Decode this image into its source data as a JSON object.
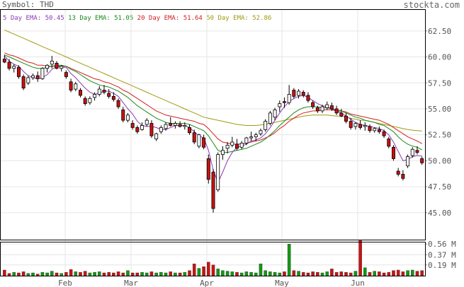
{
  "header": {
    "symbol_label": "Symbol:",
    "symbol": "THD",
    "site": "stockta.com"
  },
  "ema_legend": [
    {
      "label": "5 Day EMA:",
      "value": "50.45",
      "color": "#8b3ab5"
    },
    {
      "label": "13 Day EMA:",
      "value": "51.05",
      "color": "#1a8a1a"
    },
    {
      "label": "20 Day EMA:",
      "value": "51.64",
      "color": "#d42020"
    },
    {
      "label": "50 Day EMA:",
      "value": "52.86",
      "color": "#a09a10"
    }
  ],
  "chart_data": {
    "type": "candlestick",
    "price_axis": {
      "ticks": [
        "62.50",
        "60.00",
        "57.50",
        "55.00",
        "52.50",
        "50.00",
        "47.50",
        "45.00"
      ],
      "ylim": [
        42.4,
        64.6
      ]
    },
    "volume_axis": {
      "ticks": [
        "0.56 M",
        "0.37 M",
        "0.19 M"
      ],
      "ylim": [
        0,
        0.6
      ]
    },
    "month_labels": [
      "Feb",
      "Mar",
      "Apr",
      "May",
      "Jun"
    ],
    "colors": {
      "up": "#ffffff",
      "down": "#cc1111",
      "vol_up": "#119911",
      "vol_down": "#cc1111",
      "grid": "#e6e6e6"
    },
    "candles": [
      [
        59.8,
        60.2,
        59.4,
        59.5
      ],
      [
        59.5,
        59.8,
        58.7,
        58.9
      ],
      [
        58.9,
        59.3,
        58.5,
        59.1
      ],
      [
        59.0,
        59.2,
        57.9,
        58.1
      ],
      [
        58.1,
        58.3,
        56.8,
        57.0
      ],
      [
        57.5,
        58.2,
        57.3,
        58.0
      ],
      [
        58.0,
        58.4,
        57.8,
        58.2
      ],
      [
        58.2,
        58.6,
        57.6,
        57.9
      ],
      [
        57.9,
        59.0,
        57.8,
        58.9
      ],
      [
        58.9,
        59.3,
        58.5,
        59.2
      ],
      [
        59.3,
        60.1,
        58.9,
        59.6
      ],
      [
        59.4,
        59.6,
        58.8,
        58.9
      ],
      [
        58.9,
        59.2,
        58.6,
        59.1
      ],
      [
        58.5,
        58.7,
        57.9,
        58.1
      ],
      [
        57.6,
        57.9,
        56.6,
        56.8
      ],
      [
        56.9,
        57.6,
        56.7,
        57.4
      ],
      [
        56.8,
        57.0,
        56.1,
        56.3
      ],
      [
        56.0,
        56.2,
        55.3,
        55.5
      ],
      [
        55.6,
        56.2,
        55.4,
        56.0
      ],
      [
        56.1,
        56.6,
        55.8,
        56.4
      ],
      [
        56.4,
        57.2,
        56.2,
        56.9
      ],
      [
        56.8,
        57.3,
        56.4,
        56.6
      ],
      [
        56.5,
        56.9,
        56.0,
        56.2
      ],
      [
        56.2,
        56.6,
        55.7,
        55.9
      ],
      [
        55.8,
        56.0,
        55.0,
        55.2
      ],
      [
        54.9,
        55.2,
        53.7,
        53.9
      ],
      [
        53.9,
        54.6,
        53.7,
        54.4
      ],
      [
        53.6,
        53.9,
        53.0,
        53.2
      ],
      [
        53.2,
        53.4,
        52.6,
        52.8
      ],
      [
        53.0,
        53.7,
        52.9,
        53.4
      ],
      [
        53.5,
        54.1,
        53.3,
        53.9
      ],
      [
        53.6,
        53.9,
        52.2,
        52.4
      ],
      [
        52.1,
        52.7,
        51.9,
        52.6
      ],
      [
        52.8,
        53.4,
        52.6,
        53.2
      ],
      [
        53.1,
        53.7,
        52.9,
        53.5
      ],
      [
        53.6,
        54.2,
        53.3,
        53.4
      ],
      [
        53.4,
        53.8,
        53.1,
        53.6
      ],
      [
        53.5,
        53.8,
        53.2,
        53.3
      ],
      [
        53.3,
        53.7,
        53.0,
        53.4
      ],
      [
        53.2,
        53.5,
        52.5,
        52.7
      ],
      [
        52.7,
        53.0,
        51.6,
        51.8
      ],
      [
        51.4,
        52.6,
        51.2,
        52.5
      ],
      [
        52.2,
        52.5,
        51.1,
        51.3
      ],
      [
        50.2,
        50.6,
        47.8,
        48.2
      ],
      [
        48.9,
        49.2,
        45.0,
        45.4
      ],
      [
        47.2,
        50.8,
        47.0,
        50.6
      ],
      [
        50.6,
        51.4,
        50.1,
        51.0
      ],
      [
        51.2,
        51.8,
        50.7,
        51.5
      ],
      [
        51.5,
        52.3,
        51.3,
        51.8
      ],
      [
        51.6,
        52.1,
        51.0,
        51.2
      ],
      [
        51.3,
        51.9,
        51.1,
        51.7
      ],
      [
        51.7,
        52.3,
        51.5,
        52.2
      ],
      [
        52.2,
        52.8,
        51.9,
        52.3
      ],
      [
        52.3,
        52.7,
        51.9,
        52.5
      ],
      [
        52.6,
        53.1,
        52.4,
        52.9
      ],
      [
        53.0,
        54.0,
        52.8,
        53.8
      ],
      [
        53.6,
        54.8,
        53.4,
        54.6
      ],
      [
        54.2,
        55.1,
        53.9,
        54.9
      ],
      [
        55.2,
        55.8,
        54.7,
        55.5
      ],
      [
        55.7,
        56.1,
        55.1,
        55.6
      ],
      [
        55.6,
        57.3,
        55.4,
        56.4
      ],
      [
        56.8,
        57.0,
        56.0,
        56.2
      ],
      [
        56.3,
        56.9,
        56.0,
        56.7
      ],
      [
        56.6,
        56.8,
        56.1,
        56.3
      ],
      [
        56.3,
        56.6,
        55.6,
        55.8
      ],
      [
        55.6,
        55.8,
        55.0,
        55.2
      ],
      [
        55.1,
        55.3,
        54.6,
        54.8
      ],
      [
        54.8,
        55.4,
        54.6,
        55.2
      ],
      [
        55.1,
        55.7,
        54.9,
        55.4
      ],
      [
        55.3,
        55.6,
        54.8,
        55.0
      ],
      [
        55.0,
        55.3,
        54.4,
        54.6
      ],
      [
        54.6,
        55.0,
        54.2,
        54.3
      ],
      [
        54.3,
        54.6,
        53.6,
        53.8
      ],
      [
        53.8,
        54.1,
        53.0,
        53.2
      ],
      [
        53.3,
        53.7,
        53.0,
        53.6
      ],
      [
        53.5,
        53.9,
        53.0,
        53.2
      ],
      [
        53.3,
        53.7,
        52.9,
        53.4
      ],
      [
        53.3,
        53.5,
        52.7,
        52.9
      ],
      [
        52.9,
        53.2,
        52.7,
        53.1
      ],
      [
        53.0,
        53.3,
        52.6,
        52.8
      ],
      [
        52.8,
        53.0,
        52.2,
        52.4
      ],
      [
        52.1,
        52.3,
        51.2,
        51.4
      ],
      [
        51.3,
        51.5,
        50.0,
        50.2
      ],
      [
        49.0,
        49.3,
        48.5,
        48.7
      ],
      [
        48.7,
        49.1,
        48.1,
        48.3
      ],
      [
        49.5,
        50.6,
        49.3,
        50.4
      ],
      [
        50.5,
        51.3,
        50.3,
        51.1
      ],
      [
        51.0,
        51.4,
        50.6,
        50.8
      ],
      [
        50.2,
        50.4,
        49.6,
        49.8
      ]
    ],
    "volume": [
      0.1,
      0.04,
      0.06,
      0.05,
      0.07,
      0.04,
      0.05,
      0.03,
      0.06,
      0.05,
      0.08,
      0.05,
      0.04,
      0.06,
      0.11,
      0.07,
      0.06,
      0.08,
      0.05,
      0.06,
      0.07,
      0.05,
      0.06,
      0.05,
      0.07,
      0.05,
      0.09,
      0.05,
      0.05,
      0.06,
      0.05,
      0.07,
      0.05,
      0.06,
      0.05,
      0.07,
      0.05,
      0.05,
      0.06,
      0.09,
      0.21,
      0.13,
      0.16,
      0.24,
      0.19,
      0.12,
      0.09,
      0.08,
      0.07,
      0.06,
      0.05,
      0.07,
      0.06,
      0.05,
      0.21,
      0.09,
      0.07,
      0.06,
      0.05,
      0.07,
      0.56,
      0.09,
      0.08,
      0.06,
      0.05,
      0.07,
      0.06,
      0.05,
      0.07,
      0.12,
      0.06,
      0.07,
      0.06,
      0.05,
      0.08,
      0.62,
      0.14,
      0.06,
      0.08,
      0.07,
      0.05,
      0.06,
      0.09,
      0.1,
      0.07,
      0.09,
      0.1,
      0.08,
      0.09
    ],
    "ema": {
      "ema5": [
        60.1,
        59.6,
        59.3,
        59.1,
        58.6,
        58.2,
        58.0,
        57.9,
        58.0,
        58.3,
        58.8,
        59.1,
        59.0,
        59.0,
        58.4,
        58.0,
        57.5,
        57.0,
        56.6,
        56.4,
        56.5,
        56.7,
        56.7,
        56.5,
        56.2,
        55.6,
        55.0,
        54.5,
        53.8,
        53.4,
        53.3,
        53.3,
        53.2,
        53.0,
        53.0,
        53.2,
        53.4,
        53.4,
        53.4,
        53.2,
        52.8,
        52.4,
        52.2,
        51.0,
        49.1,
        47.9,
        48.9,
        50.0,
        50.8,
        51.3,
        51.4,
        51.6,
        51.9,
        52.0,
        52.2,
        52.6,
        53.2,
        53.9,
        54.6,
        55.2,
        55.7,
        56.0,
        56.2,
        56.3,
        56.1,
        55.8,
        55.5,
        55.3,
        55.2,
        55.0,
        54.8,
        54.6,
        54.3,
        54.0,
        53.7,
        53.5,
        53.4,
        53.3,
        53.2,
        53.1,
        52.9,
        52.5,
        51.8,
        50.9,
        50.0,
        50.1,
        50.4,
        50.5,
        50.45
      ],
      "ema13": [
        60.2,
        60.0,
        59.8,
        59.6,
        59.4,
        59.2,
        59.0,
        58.9,
        58.9,
        59.0,
        59.1,
        59.2,
        59.2,
        59.1,
        58.8,
        58.6,
        58.3,
        58.0,
        57.7,
        57.5,
        57.3,
        57.2,
        57.1,
        56.9,
        56.7,
        56.4,
        56.1,
        55.7,
        55.3,
        55.0,
        54.7,
        54.4,
        54.1,
        53.9,
        53.7,
        53.6,
        53.6,
        53.6,
        53.6,
        53.5,
        53.3,
        53.1,
        52.9,
        52.4,
        51.7,
        51.0,
        50.8,
        50.8,
        50.9,
        51.0,
        51.1,
        51.2,
        51.4,
        51.6,
        51.8,
        52.1,
        52.5,
        52.9,
        53.4,
        53.8,
        54.2,
        54.6,
        54.9,
        55.1,
        55.2,
        55.2,
        55.2,
        55.1,
        55.1,
        55.0,
        54.9,
        54.8,
        54.6,
        54.4,
        54.2,
        54.1,
        53.9,
        53.8,
        53.7,
        53.5,
        53.4,
        53.1,
        52.8,
        52.3,
        51.9,
        51.6,
        51.4,
        51.3,
        51.05
      ],
      "ema20": [
        60.4,
        60.2,
        60.1,
        59.9,
        59.7,
        59.5,
        59.4,
        59.2,
        59.2,
        59.1,
        59.1,
        59.1,
        59.1,
        59.1,
        58.9,
        58.7,
        58.5,
        58.3,
        58.1,
        57.9,
        57.8,
        57.6,
        57.5,
        57.3,
        57.1,
        56.8,
        56.6,
        56.3,
        56.0,
        55.7,
        55.4,
        55.1,
        54.8,
        54.6,
        54.4,
        54.3,
        54.2,
        54.1,
        54.0,
        53.9,
        53.8,
        53.6,
        53.5,
        53.1,
        52.6,
        52.1,
        51.8,
        51.7,
        51.6,
        51.6,
        51.6,
        51.7,
        51.8,
        51.9,
        52.0,
        52.2,
        52.4,
        52.7,
        53.1,
        53.4,
        53.8,
        54.1,
        54.4,
        54.6,
        54.7,
        54.8,
        54.8,
        54.9,
        54.9,
        54.9,
        54.8,
        54.8,
        54.7,
        54.5,
        54.4,
        54.3,
        54.2,
        54.1,
        54.0,
        53.9,
        53.7,
        53.5,
        53.2,
        52.9,
        52.6,
        52.3,
        52.1,
        51.9,
        51.64
      ],
      "ema50": [
        62.6,
        62.4,
        62.2,
        62.0,
        61.8,
        61.6,
        61.4,
        61.2,
        61.0,
        60.8,
        60.6,
        60.4,
        60.2,
        60.0,
        59.8,
        59.6,
        59.4,
        59.2,
        59.0,
        58.8,
        58.6,
        58.4,
        58.2,
        58.0,
        57.8,
        57.6,
        57.4,
        57.2,
        57.0,
        56.8,
        56.6,
        56.4,
        56.2,
        56.0,
        55.8,
        55.6,
        55.4,
        55.2,
        55.0,
        54.8,
        54.6,
        54.4,
        54.2,
        54.1,
        54.0,
        53.9,
        53.8,
        53.7,
        53.6,
        53.5,
        53.45,
        53.4,
        53.4,
        53.4,
        53.45,
        53.5,
        53.6,
        53.7,
        53.8,
        53.9,
        54.0,
        54.1,
        54.2,
        54.3,
        54.35,
        54.4,
        54.4,
        54.4,
        54.4,
        54.35,
        54.3,
        54.3,
        54.2,
        54.1,
        54.0,
        53.9,
        53.9,
        53.8,
        53.7,
        53.6,
        53.5,
        53.4,
        53.3,
        53.2,
        53.1,
        53.0,
        52.95,
        52.9,
        52.86
      ]
    }
  }
}
